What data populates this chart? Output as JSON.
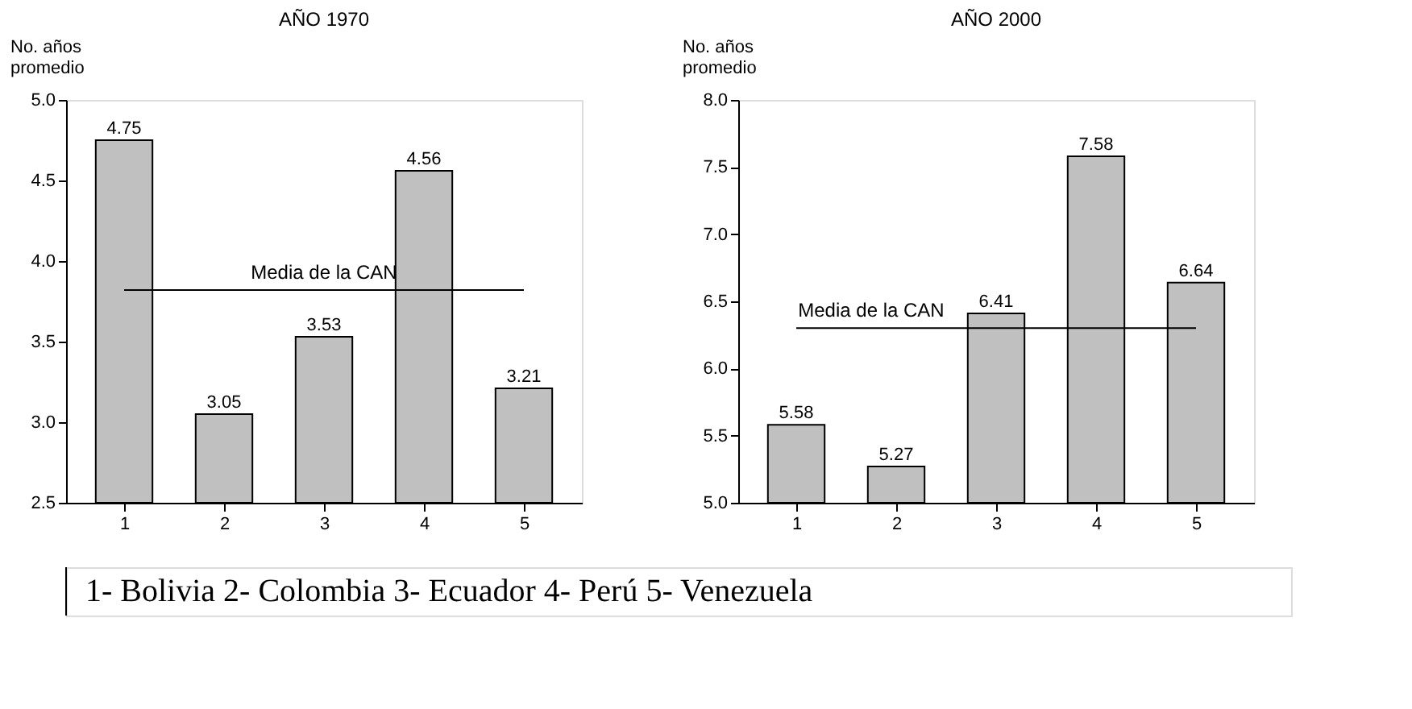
{
  "chart_data": [
    {
      "type": "bar",
      "title": "AÑO 1970",
      "ylabel": "No. años promedio",
      "categories": [
        "1",
        "2",
        "3",
        "4",
        "5"
      ],
      "values": [
        4.75,
        3.05,
        3.53,
        4.56,
        3.21
      ],
      "color": "#c0c0c0",
      "data_labels": true,
      "ylim": [
        2.5,
        5.0
      ],
      "yticks": [
        {
          "value": 2.5,
          "label": "2.5"
        },
        {
          "value": 3.0,
          "label": "3.0"
        },
        {
          "value": 3.5,
          "label": "3.5"
        },
        {
          "value": 4.0,
          "label": "4.0"
        },
        {
          "value": 4.5,
          "label": "4.5"
        },
        {
          "value": 5.0,
          "label": "5.0"
        }
      ],
      "ref_lines": [
        {
          "axis": "y",
          "value": 3.82,
          "label": "Media de la CAN"
        }
      ],
      "grid": false,
      "annotations": [
        "1- Bolivia    2- Colombia    3- Ecuador    4- Perú    5- Venezuela"
      ]
    },
    {
      "type": "bar",
      "title": "AÑO 2000",
      "ylabel": "No. años promedio",
      "categories": [
        "1",
        "2",
        "3",
        "4",
        "5"
      ],
      "values": [
        5.58,
        5.27,
        6.41,
        7.58,
        6.64
      ],
      "color": "#c0c0c0",
      "data_labels": true,
      "ylim": [
        5.0,
        8.0
      ],
      "yticks": [
        {
          "value": 5.0,
          "label": "5.0"
        },
        {
          "value": 5.5,
          "label": "5.5"
        },
        {
          "value": 6.0,
          "label": "6.0"
        },
        {
          "value": 6.5,
          "label": "6.5"
        },
        {
          "value": 7.0,
          "label": "7.0"
        },
        {
          "value": 7.5,
          "label": "7.5"
        },
        {
          "value": 8.0,
          "label": "8.0"
        }
      ],
      "ref_lines": [
        {
          "axis": "y",
          "value": 6.3,
          "label": "Media de la CAN"
        }
      ],
      "grid": false
    }
  ]
}
